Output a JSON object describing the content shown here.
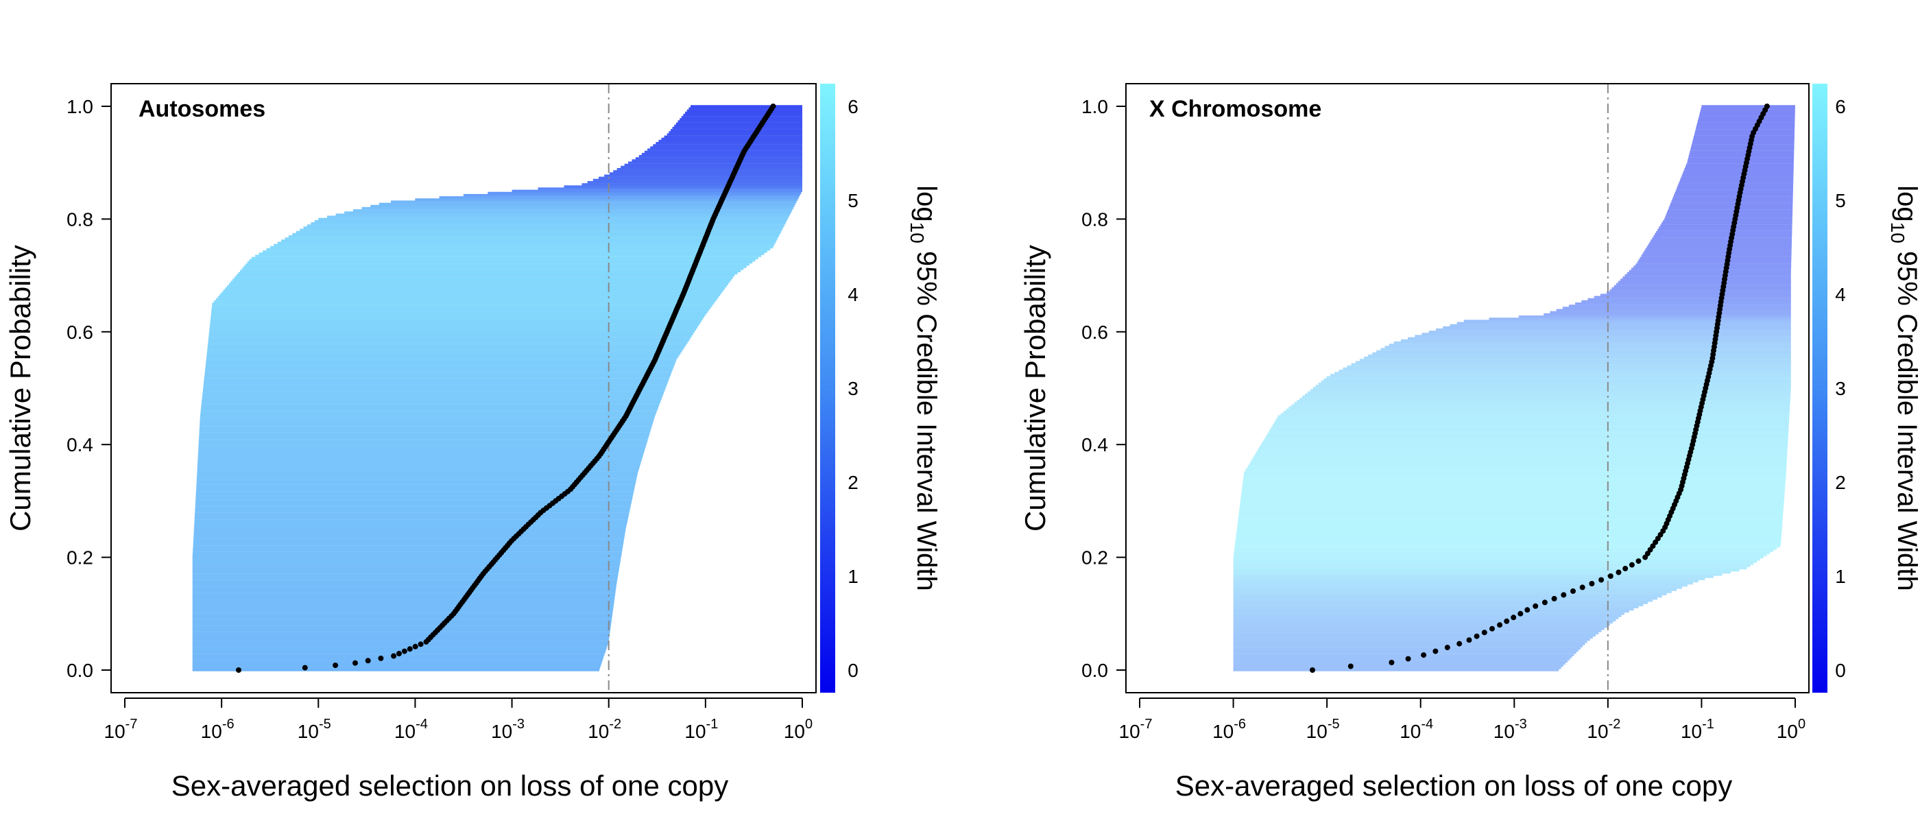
{
  "chart_data": [
    {
      "type": "scatter",
      "title": "Autosomes",
      "xlabel": "Sex-averaged selection on loss of one copy",
      "ylabel": "Cumulative Probability",
      "x_scale": "log10",
      "xlim": [
        1e-07,
        1
      ],
      "ylim": [
        0,
        1
      ],
      "x_tick_exponents": [
        -7,
        -6,
        -5,
        -4,
        -3,
        -2,
        -1,
        0
      ],
      "y_ticks": [
        "0.0",
        "0.2",
        "0.4",
        "0.6",
        "0.8",
        "1.0"
      ],
      "reference_line_x": 0.01,
      "point_color": "#000000",
      "interval_color_scale": {
        "label_prefix": "log",
        "label_subscript": "10",
        "label_suffix": " 95% Credible Interval Width",
        "ticks": [
          "0",
          "1",
          "2",
          "3",
          "4",
          "5",
          "6"
        ],
        "range": [
          0,
          6
        ],
        "color_low": "#0000ee",
        "color_high": "#80f4ff"
      },
      "median_curve": [
        [
          1.5e-06,
          0.0
        ],
        [
          5e-06,
          0.002
        ],
        [
          2e-05,
          0.01
        ],
        [
          6e-05,
          0.025
        ],
        [
          0.00013,
          0.05
        ],
        [
          0.00025,
          0.1
        ],
        [
          0.0005,
          0.17
        ],
        [
          0.001,
          0.23
        ],
        [
          0.002,
          0.28
        ],
        [
          0.004,
          0.32
        ],
        [
          0.008,
          0.38
        ],
        [
          0.015,
          0.45
        ],
        [
          0.03,
          0.55
        ],
        [
          0.06,
          0.67
        ],
        [
          0.12,
          0.8
        ],
        [
          0.25,
          0.92
        ],
        [
          0.5,
          1.0
        ]
      ],
      "ci_lower_curve": [
        [
          5e-07,
          0.0
        ],
        [
          5e-07,
          0.2
        ],
        [
          6e-07,
          0.45
        ],
        [
          8e-07,
          0.65
        ],
        [
          2e-06,
          0.73
        ],
        [
          1e-05,
          0.8
        ],
        [
          5e-05,
          0.83
        ],
        [
          0.001,
          0.85
        ],
        [
          0.005,
          0.86
        ],
        [
          0.01,
          0.88
        ],
        [
          0.02,
          0.91
        ],
        [
          0.04,
          0.95
        ],
        [
          0.07,
          1.0
        ]
      ],
      "ci_upper_curve": [
        [
          0.008,
          0.0
        ],
        [
          0.01,
          0.05
        ],
        [
          0.012,
          0.15
        ],
        [
          0.015,
          0.25
        ],
        [
          0.02,
          0.35
        ],
        [
          0.03,
          0.45
        ],
        [
          0.05,
          0.55
        ],
        [
          0.1,
          0.63
        ],
        [
          0.2,
          0.7
        ],
        [
          0.5,
          0.75
        ],
        [
          1,
          0.85
        ],
        [
          1,
          1.0
        ]
      ]
    },
    {
      "type": "scatter",
      "title": "X Chromosome",
      "xlabel": "Sex-averaged selection on loss of one copy",
      "ylabel": "Cumulative Probability",
      "x_scale": "log10",
      "xlim": [
        1e-07,
        1
      ],
      "ylim": [
        0,
        1
      ],
      "x_tick_exponents": [
        -7,
        -6,
        -5,
        -4,
        -3,
        -2,
        -1,
        0
      ],
      "y_ticks": [
        "0.0",
        "0.2",
        "0.4",
        "0.6",
        "0.8",
        "1.0"
      ],
      "reference_line_x": 0.01,
      "point_color": "#000000",
      "interval_color_scale": {
        "label_prefix": "log",
        "label_subscript": "10",
        "label_suffix": " 95% Credible Interval Width",
        "ticks": [
          "0",
          "1",
          "2",
          "3",
          "4",
          "5",
          "6"
        ],
        "range": [
          0,
          6
        ],
        "color_low": "#0000ee",
        "color_high": "#80f4ff"
      },
      "median_curve": [
        [
          7e-06,
          0.0
        ],
        [
          1.2e-05,
          0.005
        ],
        [
          4e-05,
          0.01
        ],
        [
          0.0001,
          0.025
        ],
        [
          0.0003,
          0.05
        ],
        [
          0.0007,
          0.08
        ],
        [
          0.0015,
          0.11
        ],
        [
          0.003,
          0.13
        ],
        [
          0.006,
          0.15
        ],
        [
          0.012,
          0.17
        ],
        [
          0.025,
          0.2
        ],
        [
          0.04,
          0.25
        ],
        [
          0.06,
          0.32
        ],
        [
          0.08,
          0.4
        ],
        [
          0.1,
          0.47
        ],
        [
          0.13,
          0.55
        ],
        [
          0.16,
          0.65
        ],
        [
          0.2,
          0.75
        ],
        [
          0.26,
          0.85
        ],
        [
          0.35,
          0.95
        ],
        [
          0.5,
          1.0
        ]
      ],
      "ci_lower_curve": [
        [
          1e-06,
          0.0
        ],
        [
          1e-06,
          0.2
        ],
        [
          1.3e-06,
          0.35
        ],
        [
          3e-06,
          0.45
        ],
        [
          1e-05,
          0.52
        ],
        [
          5e-05,
          0.58
        ],
        [
          0.0003,
          0.62
        ],
        [
          0.002,
          0.63
        ],
        [
          0.01,
          0.67
        ],
        [
          0.02,
          0.72
        ],
        [
          0.04,
          0.8
        ],
        [
          0.07,
          0.9
        ],
        [
          0.1,
          1.0
        ]
      ],
      "ci_upper_curve": [
        [
          0.003,
          0.0
        ],
        [
          0.006,
          0.05
        ],
        [
          0.015,
          0.1
        ],
        [
          0.05,
          0.14
        ],
        [
          0.1,
          0.16
        ],
        [
          0.3,
          0.18
        ],
        [
          0.7,
          0.22
        ],
        [
          0.8,
          0.35
        ],
        [
          0.9,
          0.5
        ],
        [
          0.9,
          0.7
        ],
        [
          1,
          1.0
        ]
      ]
    }
  ]
}
